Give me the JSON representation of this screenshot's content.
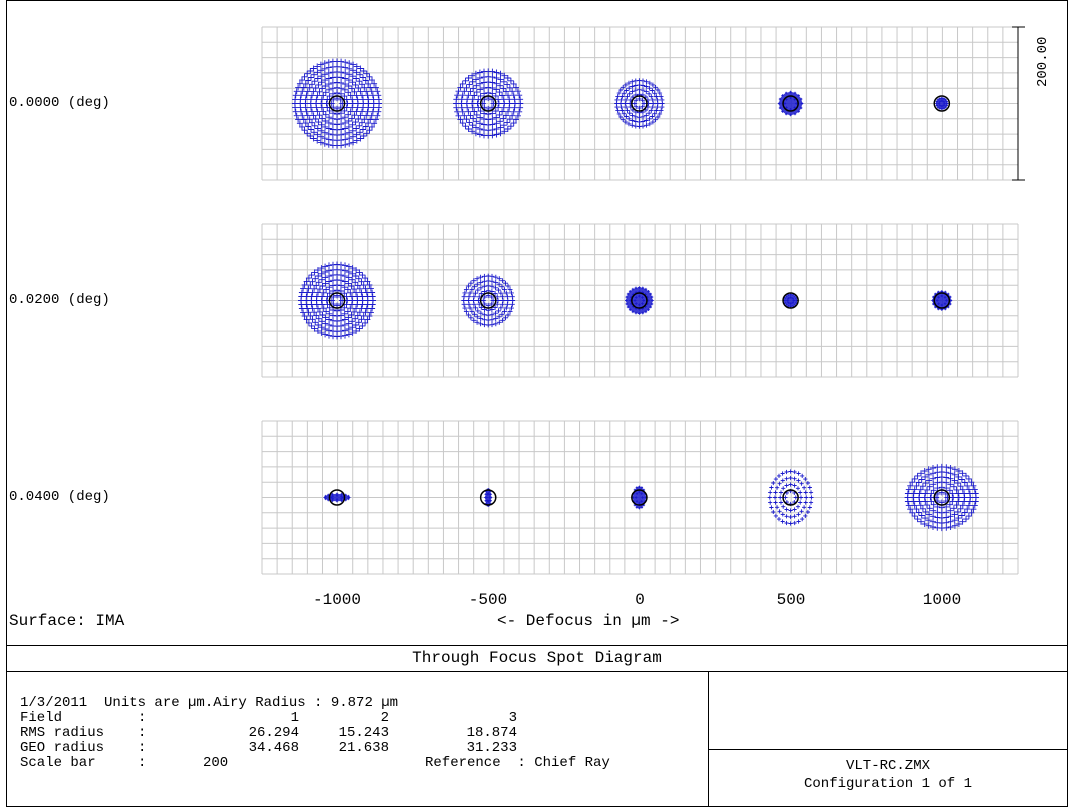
{
  "chart_data": {
    "type": "scatter",
    "title": "Through Focus Spot Diagram",
    "xlabel": "<- Defocus in µm ->",
    "x_ticks": [
      "-1000",
      "-500",
      "0",
      "500",
      "1000"
    ],
    "defocus_values": [
      -1000,
      -500,
      0,
      500,
      1000
    ],
    "fields": [
      {
        "label": "0.0000 (deg)",
        "spot_radius_um": [
          55,
          42,
          30,
          15,
          7
        ]
      },
      {
        "label": "0.0200 (deg)",
        "spot_radius_um": [
          47,
          32,
          17,
          8,
          12
        ]
      },
      {
        "label": "0.0400 (deg)",
        "spot_radius_um": [
          16,
          6,
          14,
          34,
          47
        ]
      }
    ],
    "scale_bar": "200.00",
    "surface": "Surface: IMA",
    "grid": true,
    "spot_color": "#1a1acc",
    "airy_circle_color": "#000000"
  },
  "info": {
    "header": "1/3/2011  Units are µm.Airy Radius : 9.872 µm",
    "rows": [
      {
        "label": "Field",
        "sep": ":",
        "values": [
          "1",
          "2",
          "3"
        ]
      },
      {
        "label": "RMS radius",
        "sep": ":",
        "values": [
          "26.294",
          "15.243",
          "18.874"
        ]
      },
      {
        "label": "GEO radius",
        "sep": ":",
        "values": [
          "34.468",
          "21.638",
          "31.233"
        ]
      },
      {
        "label": "Scale bar",
        "sep": ":",
        "values": [
          "200"
        ]
      }
    ],
    "reference": "Reference  : Chief Ray",
    "file": "VLT-RC.ZMX",
    "configuration": "Configuration 1 of 1"
  },
  "colors": {
    "grid": "#c8c8c8",
    "border": "#000000"
  }
}
